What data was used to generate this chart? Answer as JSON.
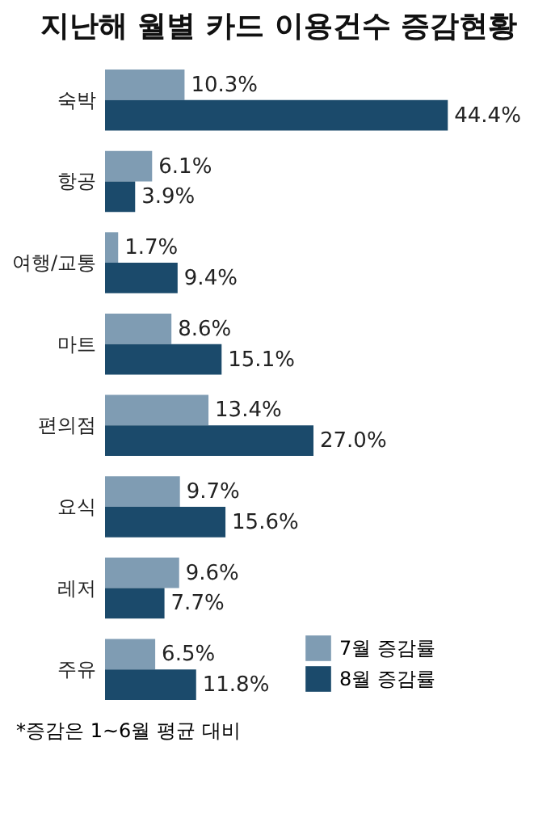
{
  "chart_data": {
    "type": "bar",
    "orientation": "horizontal",
    "title": "지난해 월별 카드 이용건수 증감현황",
    "categories": [
      "숙박",
      "항공",
      "여행/교통",
      "마트",
      "편의점",
      "요식",
      "레저",
      "주유"
    ],
    "series": [
      {
        "name": "7월 증감률",
        "color": "#7f9cb3",
        "values": [
          10.3,
          6.1,
          1.7,
          8.6,
          13.4,
          9.7,
          9.6,
          6.5
        ],
        "value_labels": [
          "10.3%",
          "6.1%",
          "1.7%",
          "8.6%",
          "13.4%",
          "9.7%",
          "9.6%",
          "6.5%"
        ]
      },
      {
        "name": "8월 증감률",
        "color": "#1b4a6b",
        "values": [
          44.4,
          3.9,
          9.4,
          15.1,
          27.0,
          15.6,
          7.7,
          11.8
        ],
        "value_labels": [
          "44.4%",
          "3.9%",
          "9.4%",
          "15.1%",
          "27.0%",
          "15.6%",
          "7.7%",
          "11.8%"
        ]
      }
    ],
    "legend": "bottom right",
    "tick_labels": "y",
    "annotations": [
      "*증감은 1~6월 평균 대비"
    ]
  }
}
